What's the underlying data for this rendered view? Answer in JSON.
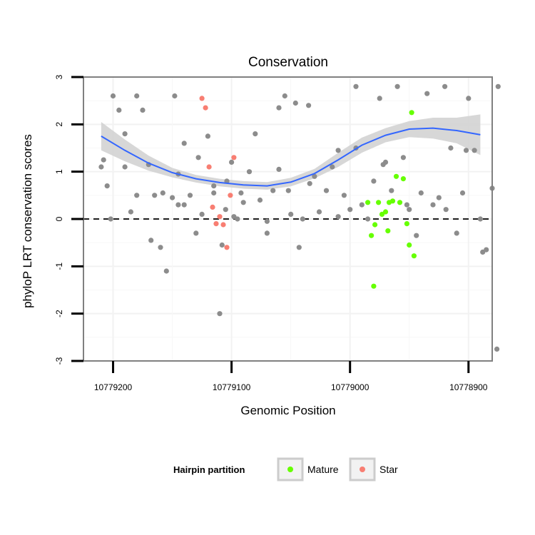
{
  "chart_data": {
    "type": "scatter",
    "title": "Conservation",
    "xlabel": "Genomic Position",
    "ylabel": "phyloP LRT conservation scores",
    "x_reversed": true,
    "xlim": [
      10779225,
      10778880
    ],
    "ylim": [
      -3,
      3
    ],
    "x_ticks": [
      10779200,
      10779100,
      10779000,
      10778900
    ],
    "x_tick_labels": [
      "10779200",
      "10779100",
      "10779000",
      "10778900"
    ],
    "y_ticks": [
      -3,
      -2,
      -1,
      0,
      1,
      2,
      3
    ],
    "y_tick_labels": [
      "-3",
      "-2",
      "-1",
      "0",
      "1",
      "2",
      "3"
    ],
    "reference_line": {
      "y": 0,
      "style": "dashed"
    },
    "grid": true,
    "colors": {
      "other": "#8c8c8c",
      "Mature": "#66ff00",
      "Star": "#f87e72",
      "smooth_line": "#3366ff",
      "smooth_band": "#d3d3d3",
      "refline": "#000000"
    },
    "smooth": {
      "x": [
        10779210,
        10779190,
        10779170,
        10779150,
        10779130,
        10779110,
        10779090,
        10779070,
        10779050,
        10779030,
        10779010,
        10778990,
        10778970,
        10778950,
        10778930,
        10778910,
        10778890
      ],
      "y": [
        1.75,
        1.45,
        1.18,
        0.98,
        0.85,
        0.77,
        0.72,
        0.7,
        0.78,
        0.96,
        1.25,
        1.56,
        1.77,
        1.9,
        1.92,
        1.87,
        1.78
      ],
      "lower": [
        1.45,
        1.22,
        1.02,
        0.88,
        0.77,
        0.69,
        0.64,
        0.62,
        0.69,
        0.86,
        1.1,
        1.4,
        1.62,
        1.73,
        1.7,
        1.6,
        1.35
      ],
      "upper": [
        2.05,
        1.68,
        1.34,
        1.08,
        0.93,
        0.85,
        0.8,
        0.78,
        0.87,
        1.06,
        1.4,
        1.72,
        1.92,
        2.07,
        2.14,
        2.14,
        2.21
      ]
    },
    "legend": {
      "title": "Hairpin partition",
      "position": "bottom",
      "entries": [
        "Mature",
        "Star"
      ]
    },
    "series": [
      {
        "group": "other",
        "x": [
          10779210,
          10779208,
          10779205,
          10779202,
          10779200,
          10779195,
          10779190,
          10779185,
          10779180,
          10779175,
          10779170,
          10779165,
          10779160,
          10779155,
          10779150,
          10779148,
          10779145,
          10779140,
          10779135,
          10779130,
          10779125,
          10779120,
          10779115,
          10779110,
          10779105,
          10779100,
          10779095,
          10779090,
          10779085,
          10779080,
          10779076,
          10779070,
          10779065,
          10779060,
          10779055,
          10779050,
          10779046,
          10779043,
          10779040,
          10779035,
          10779030,
          10779020,
          10779015,
          10779010,
          10779005,
          10779000,
          10778995,
          10778990,
          10778985,
          10778980,
          10778975,
          10778970,
          10778965,
          10778960,
          10778955,
          10778950,
          10778940,
          10778935,
          10778930,
          10778925,
          10778920,
          10778915,
          10778910,
          10778905,
          10778900,
          10778895,
          10778890,
          10778885,
          10778880,
          10778875,
          10779145,
          10779098,
          10779070,
          10779010,
          10778995,
          10779115,
          10779108,
          10779190,
          10779180,
          10779168,
          10779158,
          10779140,
          10779128,
          10779104,
          10779092,
          10779060,
          10779052,
          10779034,
          10779026,
          10778972,
          10778952,
          10778944,
          10778919,
          10778902,
          10778888,
          10778876
        ],
        "y": [
          1.1,
          1.25,
          0.7,
          0.0,
          2.6,
          2.3,
          1.1,
          0.15,
          2.6,
          2.3,
          1.15,
          0.5,
          -0.6,
          -1.1,
          0.45,
          2.6,
          0.3,
          1.6,
          0.5,
          -0.3,
          0.1,
          1.75,
          0.55,
          -2.0,
          0.2,
          1.2,
          0.0,
          0.35,
          1.0,
          1.8,
          0.4,
          -0.05,
          0.6,
          2.35,
          2.6,
          0.1,
          2.45,
          -0.6,
          0.0,
          2.4,
          0.9,
          0.6,
          1.1,
          1.45,
          0.5,
          0.2,
          2.8,
          0.3,
          0.0,
          0.8,
          2.55,
          1.2,
          0.6,
          2.8,
          1.3,
          0.2,
          0.55,
          2.65,
          0.3,
          0.45,
          2.8,
          1.5,
          -0.3,
          0.55,
          2.55,
          1.45,
          0.0,
          -0.65,
          0.65,
          2.8,
          0.95,
          0.05,
          -0.3,
          0.05,
          1.5,
          0.7,
          -0.55,
          1.8,
          0.5,
          -0.45,
          0.55,
          0.3,
          1.3,
          0.8,
          0.55,
          1.05,
          0.6,
          0.75,
          0.15,
          1.15,
          0.3,
          -0.35,
          0.2,
          1.45,
          -0.7,
          -2.75
        ]
      },
      {
        "group": "Mature",
        "x": [
          10778985,
          10778982,
          10778979,
          10778976,
          10778973,
          10778970,
          10778967,
          10778964,
          10778961,
          10778958,
          10778955,
          10778952,
          10778950,
          10778948,
          10778946,
          10778980,
          10778968
        ],
        "y": [
          0.35,
          -0.35,
          -0.12,
          0.35,
          0.1,
          0.15,
          0.35,
          0.38,
          0.9,
          0.35,
          0.85,
          -0.1,
          -0.55,
          2.25,
          -0.78,
          -1.42,
          -0.25
        ]
      },
      {
        "group": "Star",
        "x": [
          10779125,
          10779122,
          10779119,
          10779116,
          10779113,
          10779110,
          10779107,
          10779104,
          10779101,
          10779098
        ],
        "y": [
          2.55,
          2.35,
          1.1,
          0.25,
          -0.1,
          0.05,
          -0.12,
          -0.6,
          0.5,
          1.3
        ]
      }
    ]
  }
}
